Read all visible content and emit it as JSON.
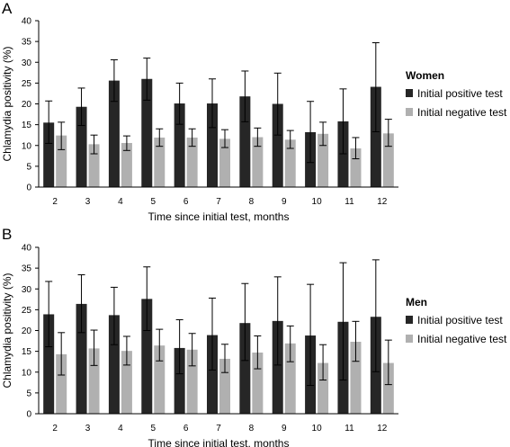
{
  "chart_data": [
    {
      "type": "bar",
      "panel_label": "A",
      "legend_title": "Women",
      "xlabel": "Time since initial test, months",
      "ylabel": "Chlamydia positivity (%)",
      "ylim": [
        0,
        40
      ],
      "yticks": [
        "0",
        "5",
        "10",
        "15",
        "20",
        "25",
        "30",
        "35",
        "40"
      ],
      "categories": [
        "2",
        "3",
        "4",
        "5",
        "6",
        "7",
        "8",
        "9",
        "10",
        "11",
        "12"
      ],
      "series": [
        {
          "name": "Initial positive test",
          "color": "#262626",
          "values": [
            15.5,
            19.3,
            25.6,
            26.0,
            20.1,
            20.1,
            21.8,
            20.0,
            13.2,
            15.8,
            24.1
          ],
          "error_low": [
            10.5,
            14.8,
            20.6,
            20.9,
            15.1,
            14.3,
            15.7,
            12.5,
            5.9,
            8.0,
            13.3
          ],
          "error_high": [
            20.7,
            23.8,
            30.6,
            31.0,
            25.0,
            26.0,
            27.9,
            27.4,
            20.6,
            23.6,
            34.7
          ]
        },
        {
          "name": "Initial negative test",
          "color": "#b0b0b0",
          "values": [
            12.4,
            10.3,
            10.6,
            11.9,
            11.9,
            11.6,
            12.0,
            11.4,
            12.8,
            9.3,
            12.9
          ],
          "error_low": [
            9.0,
            8.0,
            8.8,
            9.8,
            9.8,
            9.5,
            9.8,
            9.3,
            10.0,
            6.8,
            9.8
          ],
          "error_high": [
            15.6,
            12.5,
            12.3,
            14.0,
            14.0,
            13.8,
            14.2,
            13.6,
            15.6,
            11.9,
            16.3
          ]
        }
      ]
    },
    {
      "type": "bar",
      "panel_label": "B",
      "legend_title": "Men",
      "xlabel": "Time since initial test, months",
      "ylabel": "Chlamydia positivity (%)",
      "ylim": [
        0,
        40
      ],
      "yticks": [
        "0",
        "5",
        "10",
        "15",
        "20",
        "25",
        "30",
        "35",
        "40"
      ],
      "categories": [
        "2",
        "3",
        "4",
        "5",
        "6",
        "7",
        "8",
        "9",
        "10",
        "11",
        "12"
      ],
      "series": [
        {
          "name": "Initial positive test",
          "color": "#262626",
          "values": [
            23.9,
            26.4,
            23.7,
            27.6,
            15.8,
            18.9,
            21.8,
            22.3,
            18.8,
            22.1,
            23.3
          ],
          "error_low": [
            16.1,
            19.5,
            16.6,
            20.0,
            9.6,
            10.5,
            12.8,
            11.7,
            6.8,
            8.1,
            10.1
          ],
          "error_high": [
            31.8,
            33.4,
            30.4,
            35.3,
            22.6,
            27.8,
            31.3,
            32.9,
            31.1,
            36.3,
            37.0
          ]
        },
        {
          "name": "Initial negative test",
          "color": "#b0b0b0",
          "values": [
            14.3,
            15.7,
            15.1,
            16.4,
            15.4,
            13.2,
            14.7,
            16.9,
            12.2,
            17.3,
            12.2
          ],
          "error_low": [
            9.3,
            11.6,
            11.7,
            12.7,
            11.5,
            9.9,
            10.8,
            12.5,
            8.1,
            12.6,
            7.0
          ],
          "error_high": [
            19.5,
            20.1,
            18.6,
            20.3,
            19.3,
            16.7,
            18.7,
            21.1,
            16.6,
            22.2,
            17.7
          ]
        }
      ]
    }
  ]
}
